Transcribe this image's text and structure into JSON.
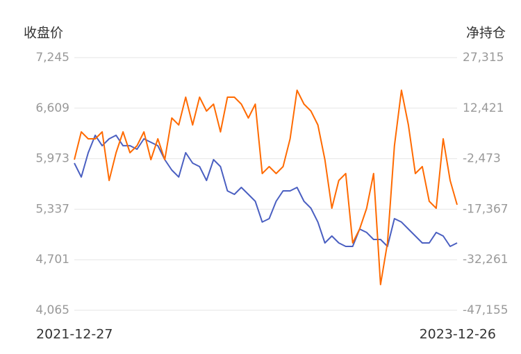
{
  "chart_data": {
    "type": "line",
    "y_label": "收盘价",
    "y2_label": "净持仓",
    "categories": [
      "2021-12-27",
      null,
      null,
      null,
      null,
      null,
      null,
      null,
      null,
      null,
      null,
      null,
      null,
      null,
      null,
      null,
      null,
      null,
      null,
      null,
      null,
      null,
      null,
      null,
      null,
      null,
      null,
      null,
      null,
      null,
      null,
      null,
      null,
      null,
      null,
      null,
      null,
      null,
      null,
      null,
      null,
      null,
      null,
      null,
      null,
      null,
      null,
      null,
      null,
      null,
      null,
      null,
      null,
      null,
      null,
      "2023-12-26"
    ],
    "series": [
      {
        "color": "#4a5fc1",
        "values": [
          5917,
          5742,
          6048,
          6267,
          6136,
          6223,
          6267,
          6136,
          6136,
          6092,
          6223,
          6179,
          6136,
          5961,
          5830,
          5742,
          6048,
          5917,
          5873,
          5699,
          5961,
          5873,
          5568,
          5524,
          5611,
          5524,
          5437,
          5175,
          5218,
          5437,
          5568,
          5568,
          5611,
          5437,
          5349,
          5175,
          4912,
          5000,
          4912,
          4869,
          4869,
          5087,
          5044,
          4956,
          4956,
          4869,
          5218,
          5175,
          5087,
          5000,
          4912,
          4912,
          5044,
          5000,
          4869,
          4912
        ]
      },
      {
        "color": "#ff6a00",
        "axis": "y2",
        "values": [
          -2761,
          5423,
          3377,
          3377,
          5423,
          -8899,
          -715,
          5423,
          -715,
          1331,
          5423,
          -2761,
          3377,
          -2761,
          9515,
          7469,
          15653,
          7469,
          15653,
          11561,
          13607,
          5423,
          15653,
          15653,
          13607,
          9515,
          13607,
          -6853,
          -4807,
          -6853,
          -4807,
          3377,
          17699,
          13607,
          11561,
          7469,
          -2761,
          -17083,
          -8899,
          -6853,
          -27313,
          -23221,
          -17083,
          -6853,
          -39589,
          -27313,
          1331,
          17699,
          7469,
          -6853,
          -4807,
          -15037,
          -17083,
          3377,
          -8899,
          -16060
        ]
      }
    ],
    "ylim": [
      4065,
      7245
    ],
    "yticks": [
      {
        "value": 4065,
        "label": "4,065"
      },
      {
        "value": 4701,
        "label": "4,701"
      },
      {
        "value": 5337,
        "label": "5,337"
      },
      {
        "value": 5973,
        "label": "5,973"
      },
      {
        "value": 6609,
        "label": "6,609"
      },
      {
        "value": 7245,
        "label": "7,245"
      }
    ],
    "y2lim": [
      -47155,
      27315
    ],
    "y2ticks": [
      {
        "value": -47155,
        "label": "-47,155"
      },
      {
        "value": -32261,
        "label": "-32,261"
      },
      {
        "value": -17367,
        "label": "-17,367"
      },
      {
        "value": -2473,
        "label": "-2,473"
      },
      {
        "value": 12421,
        "label": "12,421"
      },
      {
        "value": 27315,
        "label": "27,315"
      }
    ],
    "grid": true
  }
}
